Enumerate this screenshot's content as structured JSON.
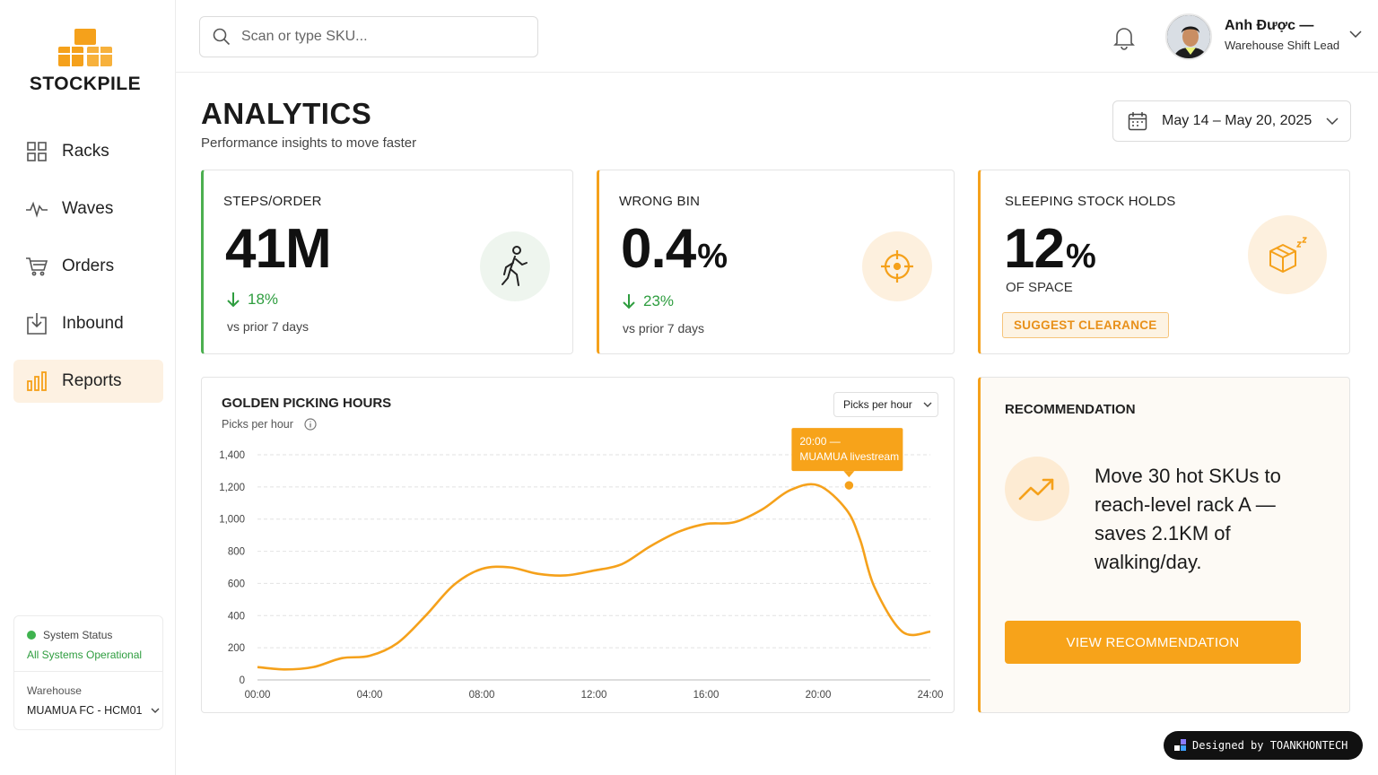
{
  "brand": {
    "name": "STOCKPILE",
    "accent": "#f5a11b"
  },
  "sidebar": {
    "items": [
      {
        "label": "Racks",
        "icon": "grid-icon",
        "active": false
      },
      {
        "label": "Waves",
        "icon": "pulse-icon",
        "active": false
      },
      {
        "label": "Orders",
        "icon": "cart-icon",
        "active": false
      },
      {
        "label": "Inbound",
        "icon": "inbox-download-icon",
        "active": false
      },
      {
        "label": "Reports",
        "icon": "bar-chart-icon",
        "active": true
      }
    ],
    "status": {
      "label": "System Status",
      "value": "All Systems Operational"
    },
    "warehouse": {
      "label": "Warehouse",
      "value": "MUAMUA FC - HCM01"
    }
  },
  "header": {
    "search_placeholder": "Scan or type SKU...",
    "user": {
      "name": "Anh Được —",
      "role": "Warehouse Shift Lead"
    }
  },
  "page": {
    "title": "ANALYTICS",
    "subtitle": "Performance insights to move faster",
    "date_range": "May 14 – May 20, 2025"
  },
  "kpis": {
    "steps": {
      "title": "STEPS/ORDER",
      "value": "41",
      "unit": "M",
      "delta": "18%",
      "note": "vs prior 7 days",
      "icon": "walking-person-icon"
    },
    "wrong_bin": {
      "title": "WRONG BIN",
      "value": "0.4",
      "unit": "%",
      "delta": "23%",
      "note": "vs prior 7 days",
      "icon": "crosshair-icon"
    },
    "sleeping": {
      "title": "SLEEPING STOCK HOLDS",
      "value": "12",
      "unit": "%",
      "of": "OF SPACE",
      "action": "SUGGEST CLEARANCE",
      "icon": "sleeping-box-icon"
    }
  },
  "chart": {
    "title": "GOLDEN PICKING HOURS",
    "subtitle": "Picks per hour",
    "selector": "Picks per hour",
    "tooltip_line1": "20:00 —",
    "tooltip_line2": "MUAMUA livestream"
  },
  "chart_data": {
    "type": "line",
    "title": "GOLDEN PICKING HOURS",
    "ylabel": "Picks per hour",
    "ylim": [
      0,
      1400
    ],
    "yticks": [
      0,
      200,
      400,
      600,
      800,
      1000,
      1200,
      1400
    ],
    "xticks": [
      "00:00",
      "04:00",
      "08:00",
      "12:00",
      "16:00",
      "20:00",
      "24:00"
    ],
    "xlim": [
      0,
      24
    ],
    "grid": true,
    "series": [
      {
        "color": "#f5a11b",
        "x": [
          0,
          1,
          2,
          3,
          4,
          5,
          6,
          7,
          8,
          9,
          10,
          11,
          12,
          13,
          14,
          15,
          16,
          17,
          18,
          19,
          20,
          21,
          21.5,
          22,
          23,
          24
        ],
        "y": [
          80,
          65,
          80,
          135,
          150,
          230,
          400,
          590,
          690,
          700,
          660,
          650,
          680,
          720,
          830,
          920,
          970,
          980,
          1060,
          1180,
          1210,
          1060,
          870,
          580,
          300,
          300
        ]
      }
    ],
    "annotation": {
      "x": 21.1,
      "y": 1210,
      "label": "20:00 — MUAMUA livestream"
    }
  },
  "recommendation": {
    "title": "RECOMMENDATION",
    "text": "Move 30 hot SKUs to reach-level rack A — saves 2.1KM of walking/day.",
    "button": "VIEW RECOMMENDATION"
  },
  "credit": "Designed by TOANKHONTECH"
}
